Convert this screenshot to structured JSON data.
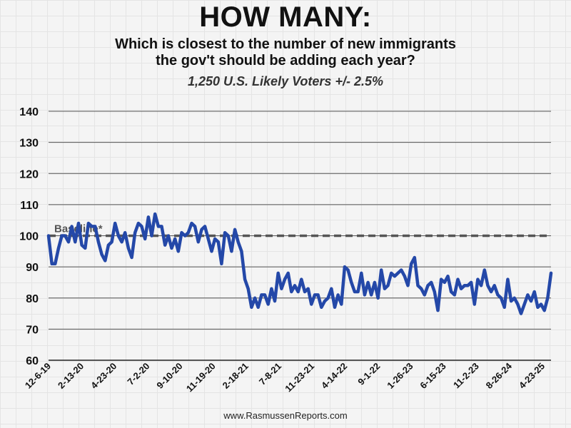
{
  "title": "HOW MANY:",
  "subtitle_line1": "Which is closest to the number of new immigrants",
  "subtitle_line2": "the gov't should be adding each year?",
  "sample_note": "1,250 U.S. Likely Voters +/- 2.5%",
  "footer": "www.RasmussenReports.com",
  "chart_data": {
    "type": "line",
    "ylim": [
      60,
      140
    ],
    "yticks": [
      60,
      70,
      80,
      90,
      100,
      110,
      120,
      130,
      140
    ],
    "xtick_labels": [
      "12-6-19",
      "2-13-20",
      "4-23-20",
      "7-2-20",
      "9-10-20",
      "11-19-20",
      "2-18-21",
      "7-8-21",
      "11-23-21",
      "4-14-22",
      "9-1-22",
      "1-26-23",
      "6-15-23",
      "11-2-23",
      "8-26-24",
      "4-23-25"
    ],
    "baseline": {
      "label": "Baseline*",
      "value": 100
    },
    "series": [
      {
        "color": "#2448a8",
        "values": [
          100,
          91,
          91,
          96,
          100,
          100,
          98,
          103,
          98,
          104,
          97,
          96,
          104,
          103,
          103,
          98,
          94,
          92,
          97,
          98,
          104,
          100,
          98,
          101,
          96,
          93,
          101,
          104,
          103,
          99,
          106,
          100,
          107,
          103,
          103,
          97,
          100,
          96,
          99,
          95,
          101,
          100,
          101,
          104,
          103,
          98,
          102,
          103,
          99,
          95,
          99,
          98,
          91,
          101,
          100,
          95,
          102,
          98,
          95,
          86,
          83,
          77,
          80,
          77,
          81,
          81,
          78,
          83,
          79,
          88,
          83,
          86,
          88,
          82,
          84,
          82,
          86,
          82,
          83,
          78,
          81,
          81,
          77,
          79,
          80,
          83,
          77,
          81,
          78,
          90,
          89,
          85,
          82,
          82,
          88,
          81,
          85,
          81,
          85,
          80,
          89,
          83,
          84,
          88,
          87,
          88,
          89,
          87,
          84,
          91,
          93,
          84,
          83,
          81,
          84,
          85,
          82,
          76,
          86,
          85,
          87,
          82,
          81,
          86,
          83,
          84,
          84,
          85,
          78,
          86,
          84,
          89,
          84,
          82,
          84,
          81,
          80,
          77,
          86,
          79,
          80,
          78,
          75,
          78,
          81,
          79,
          82,
          77,
          78,
          76,
          80,
          88
        ]
      }
    ]
  }
}
